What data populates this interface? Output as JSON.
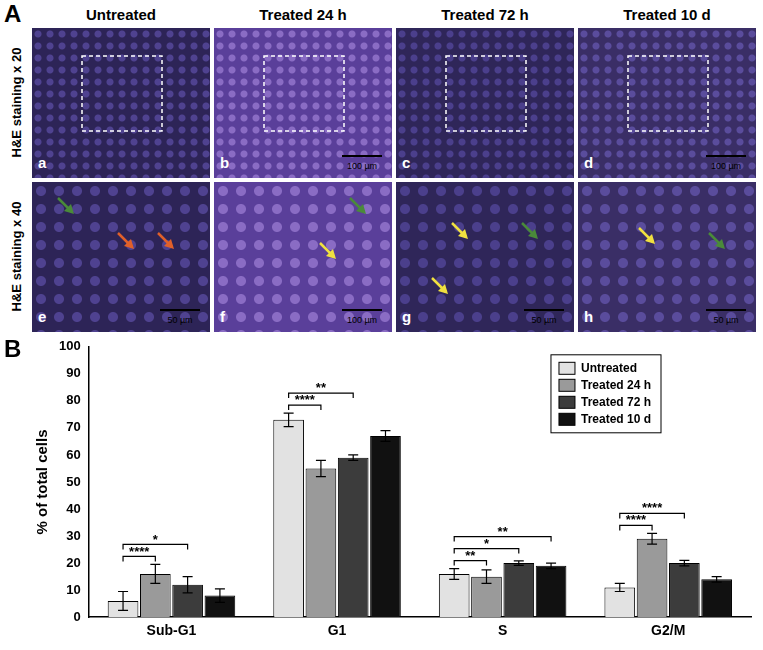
{
  "panel_a": {
    "label": "A",
    "columns": [
      "Untreated",
      "Treated 24 h",
      "Treated 72 h",
      "Treated 10 d"
    ],
    "rows": [
      "H&E staining x 20",
      "H&E staining x 40"
    ],
    "panels": [
      {
        "letter": "a"
      },
      {
        "letter": "b",
        "scale_bar": "100 µm"
      },
      {
        "letter": "c"
      },
      {
        "letter": "d",
        "scale_bar": "100 µm"
      },
      {
        "letter": "e",
        "scale_bar": "50 µm"
      },
      {
        "letter": "f",
        "scale_bar": "100 µm"
      },
      {
        "letter": "g",
        "scale_bar": "50 µm"
      },
      {
        "letter": "h",
        "scale_bar": "50 µm"
      }
    ]
  },
  "chart_data": {
    "type": "bar",
    "panel_label": "B",
    "y_label": "% of total cells",
    "categories": [
      "Sub-G1",
      "G1",
      "S",
      "G2/M"
    ],
    "series": [
      {
        "name": "Untreated",
        "color": "#e2e2e2",
        "values": [
          6,
          73,
          16,
          11
        ],
        "errors": [
          3.5,
          2.5,
          2,
          1.5
        ]
      },
      {
        "name": "Treated 24 h",
        "color": "#9a9a9a",
        "values": [
          16,
          55,
          15,
          29
        ],
        "errors": [
          3.5,
          3,
          2.5,
          2
        ]
      },
      {
        "name": "Treated 72 h",
        "color": "#3c3c3c",
        "values": [
          12,
          59,
          20,
          20
        ],
        "errors": [
          3,
          1,
          0.8,
          1
        ]
      },
      {
        "name": "Treated 10 d",
        "color": "#111111",
        "values": [
          8,
          67,
          19,
          14
        ],
        "errors": [
          2.5,
          2,
          1,
          1
        ]
      }
    ],
    "significance": [
      {
        "category": "Sub-G1",
        "from": "Untreated",
        "to": "Treated 24 h",
        "label": "****"
      },
      {
        "category": "Sub-G1",
        "from": "Untreated",
        "to": "Treated 72 h",
        "label": "*"
      },
      {
        "category": "G1",
        "from": "Untreated",
        "to": "Treated 24 h",
        "label": "****"
      },
      {
        "category": "G1",
        "from": "Untreated",
        "to": "Treated 72 h",
        "label": "**"
      },
      {
        "category": "S",
        "from": "Untreated",
        "to": "Treated 24 h",
        "label": "**"
      },
      {
        "category": "S",
        "from": "Untreated",
        "to": "Treated 72 h",
        "label": "*"
      },
      {
        "category": "S",
        "from": "Untreated",
        "to": "Treated 10 d",
        "label": "**"
      },
      {
        "category": "G2/M",
        "from": "Untreated",
        "to": "Treated 24 h",
        "label": "****"
      },
      {
        "category": "G2/M",
        "from": "Untreated",
        "to": "Treated 72 h",
        "label": "****"
      }
    ],
    "ylim": [
      0,
      100
    ],
    "yticks": [
      0,
      10,
      20,
      30,
      40,
      50,
      60,
      70,
      80,
      90,
      100
    ],
    "grid": false,
    "legend": "upper right"
  }
}
